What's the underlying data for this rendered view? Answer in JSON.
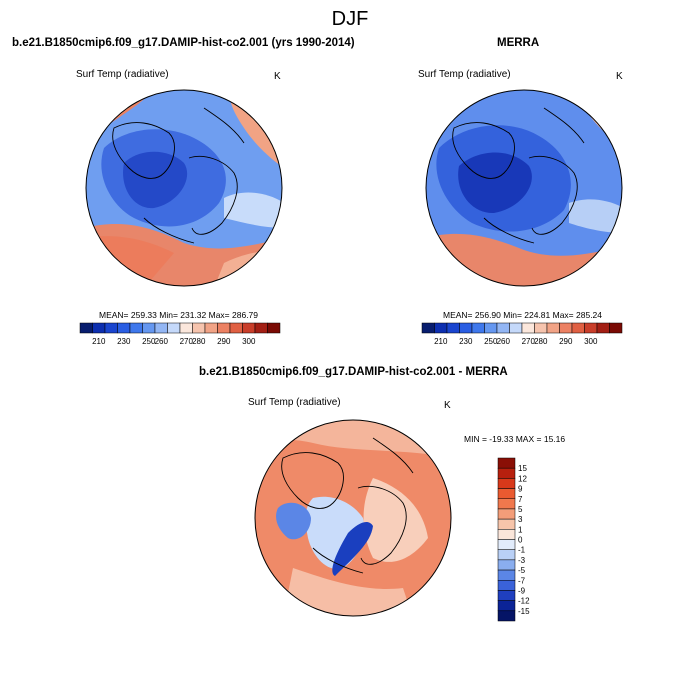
{
  "title": "DJF",
  "panels": [
    {
      "title": "b.e21.B1850cmip6.f09_g17.DAMIP-hist-co2.001 (yrs 1990-2014)",
      "variable": "Surf Temp (radiative)",
      "units": "K",
      "stats": "MEAN= 259.33  Min= 231.32  Max= 286.79",
      "colorbar": {
        "ticks": [
          "210",
          "230",
          "250",
          "260",
          "270",
          "280",
          "290",
          "300"
        ],
        "colors": [
          "#081d6e",
          "#0d2fb0",
          "#1a45cf",
          "#2a5ee3",
          "#3f78ec",
          "#6597f0",
          "#93b6f4",
          "#c5d9fa",
          "#fbe7dc",
          "#f6c4ae",
          "#f1a386",
          "#ec8163",
          "#e06043",
          "#c93e2a",
          "#a31f14",
          "#7a0a04"
        ]
      }
    },
    {
      "title": "MERRA",
      "variable": "Surf Temp (radiative)",
      "units": "K",
      "stats": "MEAN= 256.90  Min= 224.81  Max= 285.24",
      "colorbar": {
        "ticks": [
          "210",
          "230",
          "250",
          "260",
          "270",
          "280",
          "290",
          "300"
        ],
        "colors": [
          "#081d6e",
          "#0d2fb0",
          "#1a45cf",
          "#2a5ee3",
          "#3f78ec",
          "#6597f0",
          "#93b6f4",
          "#c5d9fa",
          "#fbe7dc",
          "#f6c4ae",
          "#f1a386",
          "#ec8163",
          "#e06043",
          "#c93e2a",
          "#a31f14",
          "#7a0a04"
        ]
      }
    },
    {
      "title": "b.e21.B1850cmip6.f09_g17.DAMIP-hist-co2.001 - MERRA",
      "variable": "Surf Temp (radiative)",
      "units": "K",
      "stats": "MIN = -19.33 MAX =  15.16",
      "colorbar": {
        "ticks": [
          "15",
          "12",
          "9",
          "7",
          "5",
          "3",
          "1",
          "0",
          "-1",
          "-3",
          "-5",
          "-7",
          "-9",
          "-12",
          "-15"
        ],
        "colors": [
          "#8a0f06",
          "#b7200e",
          "#d8391a",
          "#ea5a30",
          "#f0784d",
          "#f39d79",
          "#f7c5ab",
          "#fbe6da",
          "#e2ecfb",
          "#b9d0f6",
          "#8aaeef",
          "#5b86e6",
          "#3a62d9",
          "#1f3fbf",
          "#0b2396",
          "#051466"
        ]
      }
    }
  ]
}
